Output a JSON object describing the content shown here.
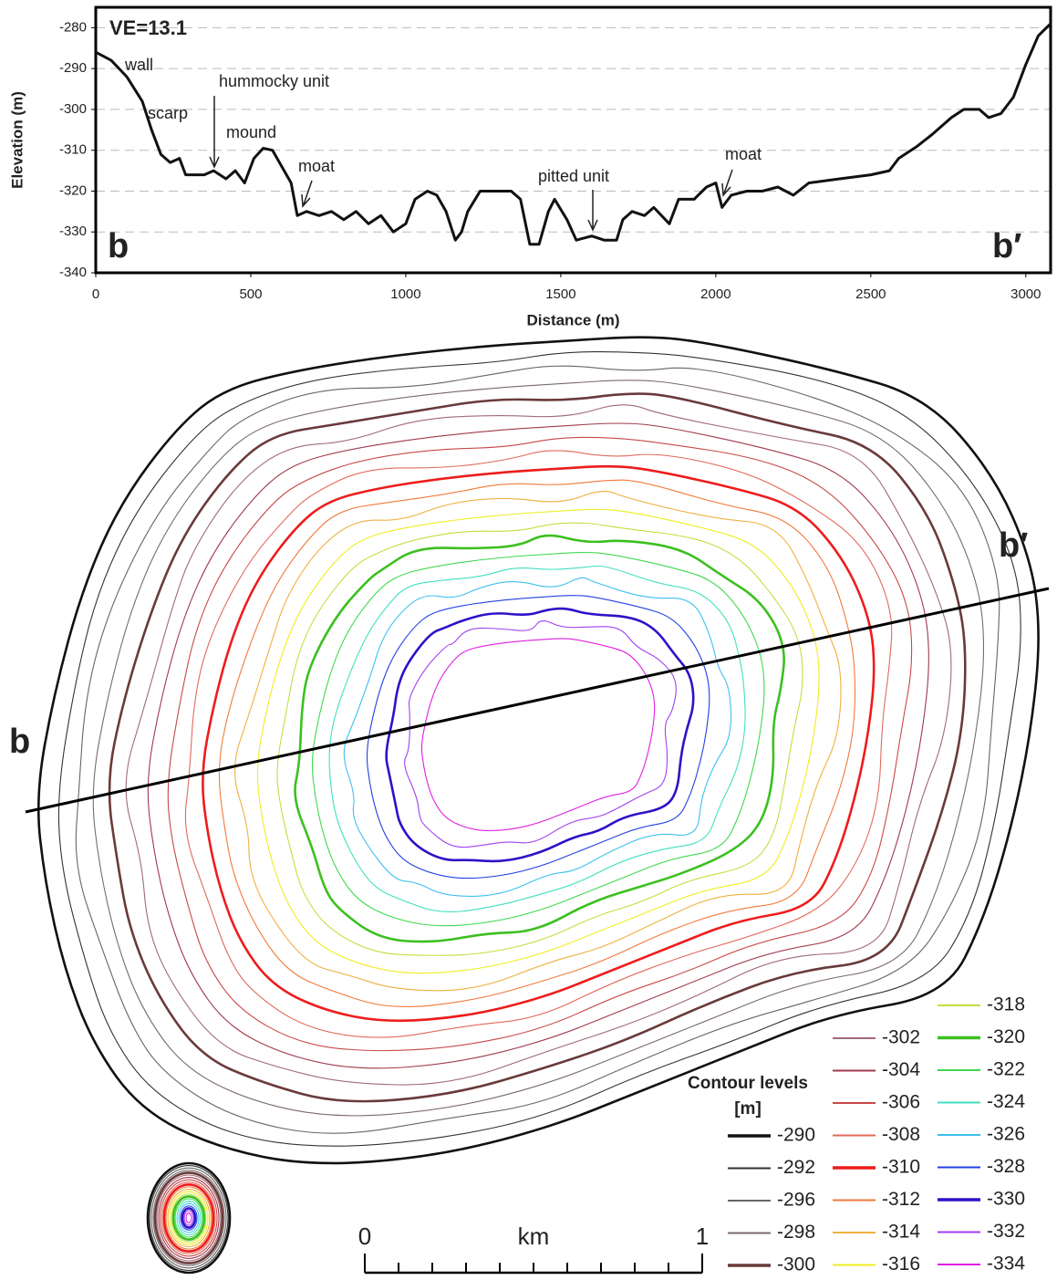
{
  "chart_data": {
    "type": "line",
    "x_label": "Distance (m)",
    "y_label": "Elevation (m)",
    "xlim": [
      0,
      3080
    ],
    "ylim": [
      -340,
      -275
    ],
    "xticks": [
      0,
      500,
      1000,
      1500,
      2000,
      2500,
      3000
    ],
    "yticks": [
      -340,
      -330,
      -320,
      -310,
      -300,
      -290,
      -280
    ],
    "grid": true,
    "x": [
      0,
      50,
      100,
      150,
      180,
      210,
      240,
      270,
      290,
      350,
      380,
      420,
      450,
      480,
      510,
      540,
      570,
      600,
      630,
      650,
      680,
      720,
      760,
      800,
      840,
      880,
      920,
      960,
      1000,
      1030,
      1070,
      1100,
      1130,
      1160,
      1180,
      1200,
      1240,
      1280,
      1340,
      1370,
      1400,
      1430,
      1460,
      1480,
      1520,
      1550,
      1600,
      1640,
      1680,
      1700,
      1730,
      1770,
      1800,
      1850,
      1880,
      1930,
      1970,
      2000,
      2020,
      2050,
      2100,
      2150,
      2200,
      2250,
      2300,
      2400,
      2500,
      2560,
      2590,
      2650,
      2700,
      2760,
      2800,
      2850,
      2880,
      2920,
      2960,
      3000,
      3040,
      3080
    ],
    "series": [
      {
        "color": "#111111",
        "values": [
          -286,
          -288,
          -292,
          -298,
          -305,
          -311,
          -313,
          -312,
          -316,
          -316,
          -315,
          -317,
          -315,
          -318,
          -312,
          -309.5,
          -310,
          -314,
          -318,
          -326,
          -325,
          -326,
          -325,
          -327,
          -325,
          -328,
          -326,
          -330,
          -328,
          -322,
          -320,
          -321,
          -325,
          -332,
          -330,
          -325,
          -320,
          -320,
          -320,
          -322,
          -333,
          -333,
          -325,
          -322,
          -327,
          -332,
          -331,
          -332,
          -332,
          -327,
          -325,
          -326,
          -324,
          -328,
          -322,
          -322,
          -319,
          -318,
          -324,
          -321,
          -320,
          -320,
          -319,
          -321,
          -318,
          -317,
          -316,
          -315,
          -312,
          -309,
          -306,
          -302,
          -300,
          -300,
          -302,
          -301,
          -297,
          -289,
          -282,
          -279
        ]
      }
    ],
    "annotations": [
      "VE=13.1",
      "wall",
      "scarp",
      "hummocky unit",
      "mound",
      "moat",
      "pitted unit",
      "moat"
    ],
    "end_labels": [
      "b",
      "b′"
    ]
  },
  "map": {
    "profile_labels": [
      "b",
      "b′"
    ],
    "legend_title": "Contour levels",
    "legend_unit": "[m]",
    "levels": [
      {
        "value": -290,
        "color": "#111111"
      },
      {
        "value": -292,
        "color": "#333333"
      },
      {
        "value": -296,
        "color": "#666666"
      },
      {
        "value": -298,
        "color": "#7a6a6a"
      },
      {
        "value": -300,
        "color": "#6a3a3a"
      },
      {
        "value": -302,
        "color": "#a06a7a"
      },
      {
        "value": -304,
        "color": "#a03a4a"
      },
      {
        "value": -306,
        "color": "#c84848"
      },
      {
        "value": -308,
        "color": "#e06a5a"
      },
      {
        "value": -310,
        "color": "#ee1c1c"
      },
      {
        "value": -312,
        "color": "#f07a3a"
      },
      {
        "value": -314,
        "color": "#f0b040"
      },
      {
        "value": -316,
        "color": "#f0ec20"
      },
      {
        "value": -318,
        "color": "#c0e040"
      },
      {
        "value": -320,
        "color": "#3cc020"
      },
      {
        "value": -322,
        "color": "#40d850"
      },
      {
        "value": -324,
        "color": "#40e0c0"
      },
      {
        "value": -326,
        "color": "#40c0f0"
      },
      {
        "value": -328,
        "color": "#2040e0"
      },
      {
        "value": -330,
        "color": "#3010c8"
      },
      {
        "value": -332,
        "color": "#a040f0"
      },
      {
        "value": -334,
        "color": "#e020e0"
      }
    ],
    "scale": {
      "start": "0",
      "unit": "km",
      "end": "1"
    }
  }
}
